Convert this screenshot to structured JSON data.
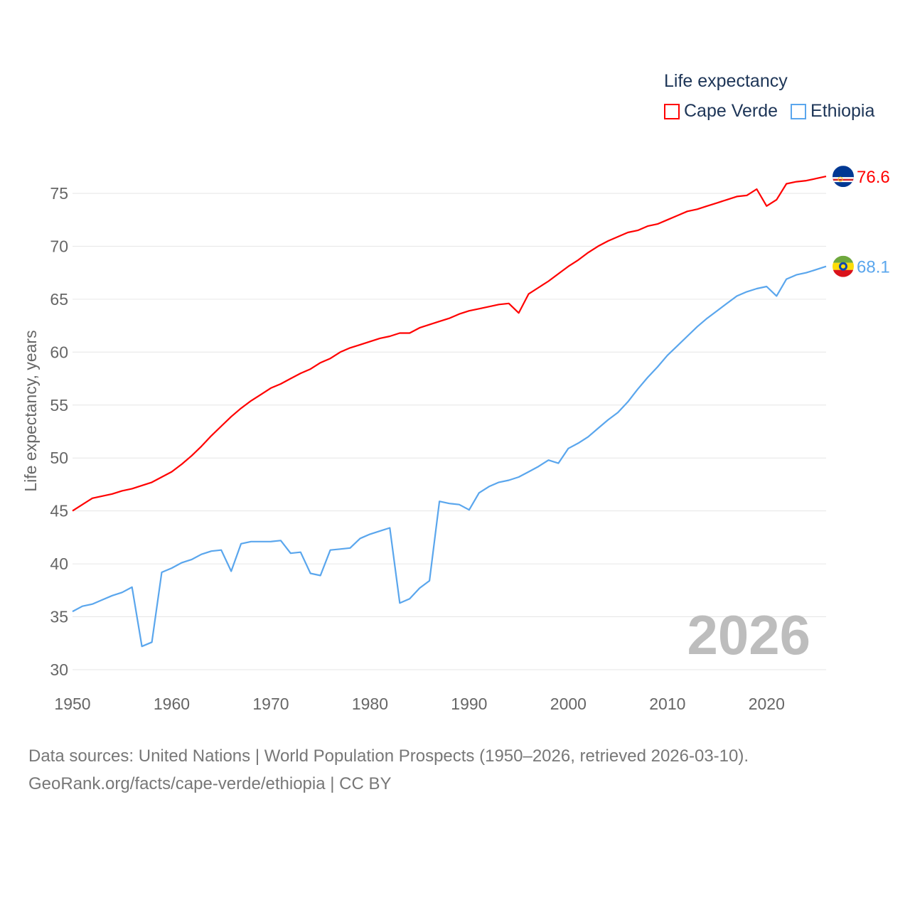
{
  "chart_data": {
    "type": "line",
    "title": "Life expectancy",
    "xlabel": "",
    "ylabel": "Life expectancy, years",
    "xlim": [
      1950,
      2026
    ],
    "ylim": [
      30,
      78
    ],
    "x_ticks": [
      1950,
      1960,
      1970,
      1980,
      1990,
      2000,
      2010,
      2020
    ],
    "y_ticks": [
      30,
      35,
      40,
      45,
      50,
      55,
      60,
      65,
      70,
      75
    ],
    "grid": true,
    "legend_position": "top-right",
    "year_label": "2026",
    "x_start": 1950,
    "series": [
      {
        "name": "Cape Verde",
        "color": "#ff0000",
        "end_label": "76.6",
        "flag_icon": "cape-verde-flag-icon",
        "values": [
          45.0,
          45.6,
          46.2,
          46.4,
          46.6,
          46.9,
          47.1,
          47.4,
          47.7,
          48.2,
          48.7,
          49.4,
          50.2,
          51.1,
          52.1,
          53.0,
          53.9,
          54.7,
          55.4,
          56.0,
          56.6,
          57.0,
          57.5,
          58.0,
          58.4,
          59.0,
          59.4,
          60.0,
          60.4,
          60.7,
          61.0,
          61.3,
          61.5,
          61.8,
          61.8,
          62.3,
          62.6,
          62.9,
          63.2,
          63.6,
          63.9,
          64.1,
          64.3,
          64.5,
          64.6,
          63.7,
          65.5,
          66.1,
          66.7,
          67.4,
          68.1,
          68.7,
          69.4,
          70.0,
          70.5,
          70.9,
          71.3,
          71.5,
          71.9,
          72.1,
          72.5,
          72.9,
          73.3,
          73.5,
          73.8,
          74.1,
          74.4,
          74.7,
          74.8,
          75.4,
          73.8,
          74.4,
          75.9,
          76.1,
          76.2,
          76.4,
          76.6
        ]
      },
      {
        "name": "Ethiopia",
        "color": "#5aa6ed",
        "end_label": "68.1",
        "flag_icon": "ethiopia-flag-icon",
        "values": [
          35.5,
          36.0,
          36.2,
          36.6,
          37.0,
          37.3,
          37.8,
          32.2,
          32.6,
          39.2,
          39.6,
          40.1,
          40.4,
          40.9,
          41.2,
          41.3,
          39.3,
          41.9,
          42.1,
          42.1,
          42.1,
          42.2,
          41.0,
          41.1,
          39.1,
          38.9,
          41.3,
          41.4,
          41.5,
          42.4,
          42.8,
          43.1,
          43.4,
          36.3,
          36.7,
          37.7,
          38.4,
          45.9,
          45.7,
          45.6,
          45.1,
          46.7,
          47.3,
          47.7,
          47.9,
          48.2,
          48.7,
          49.2,
          49.8,
          49.5,
          50.9,
          51.4,
          52.0,
          52.8,
          53.6,
          54.3,
          55.3,
          56.5,
          57.6,
          58.6,
          59.7,
          60.6,
          61.5,
          62.4,
          63.2,
          63.9,
          64.6,
          65.3,
          65.7,
          66.0,
          66.2,
          65.3,
          66.9,
          67.3,
          67.5,
          67.8,
          68.1
        ]
      }
    ]
  },
  "footer": {
    "source_line": "Data sources: United Nations | World Population Prospects (1950–2026, retrieved 2026-03-10).",
    "url_line": "GeoRank.org/facts/cape-verde/ethiopia | CC BY"
  }
}
